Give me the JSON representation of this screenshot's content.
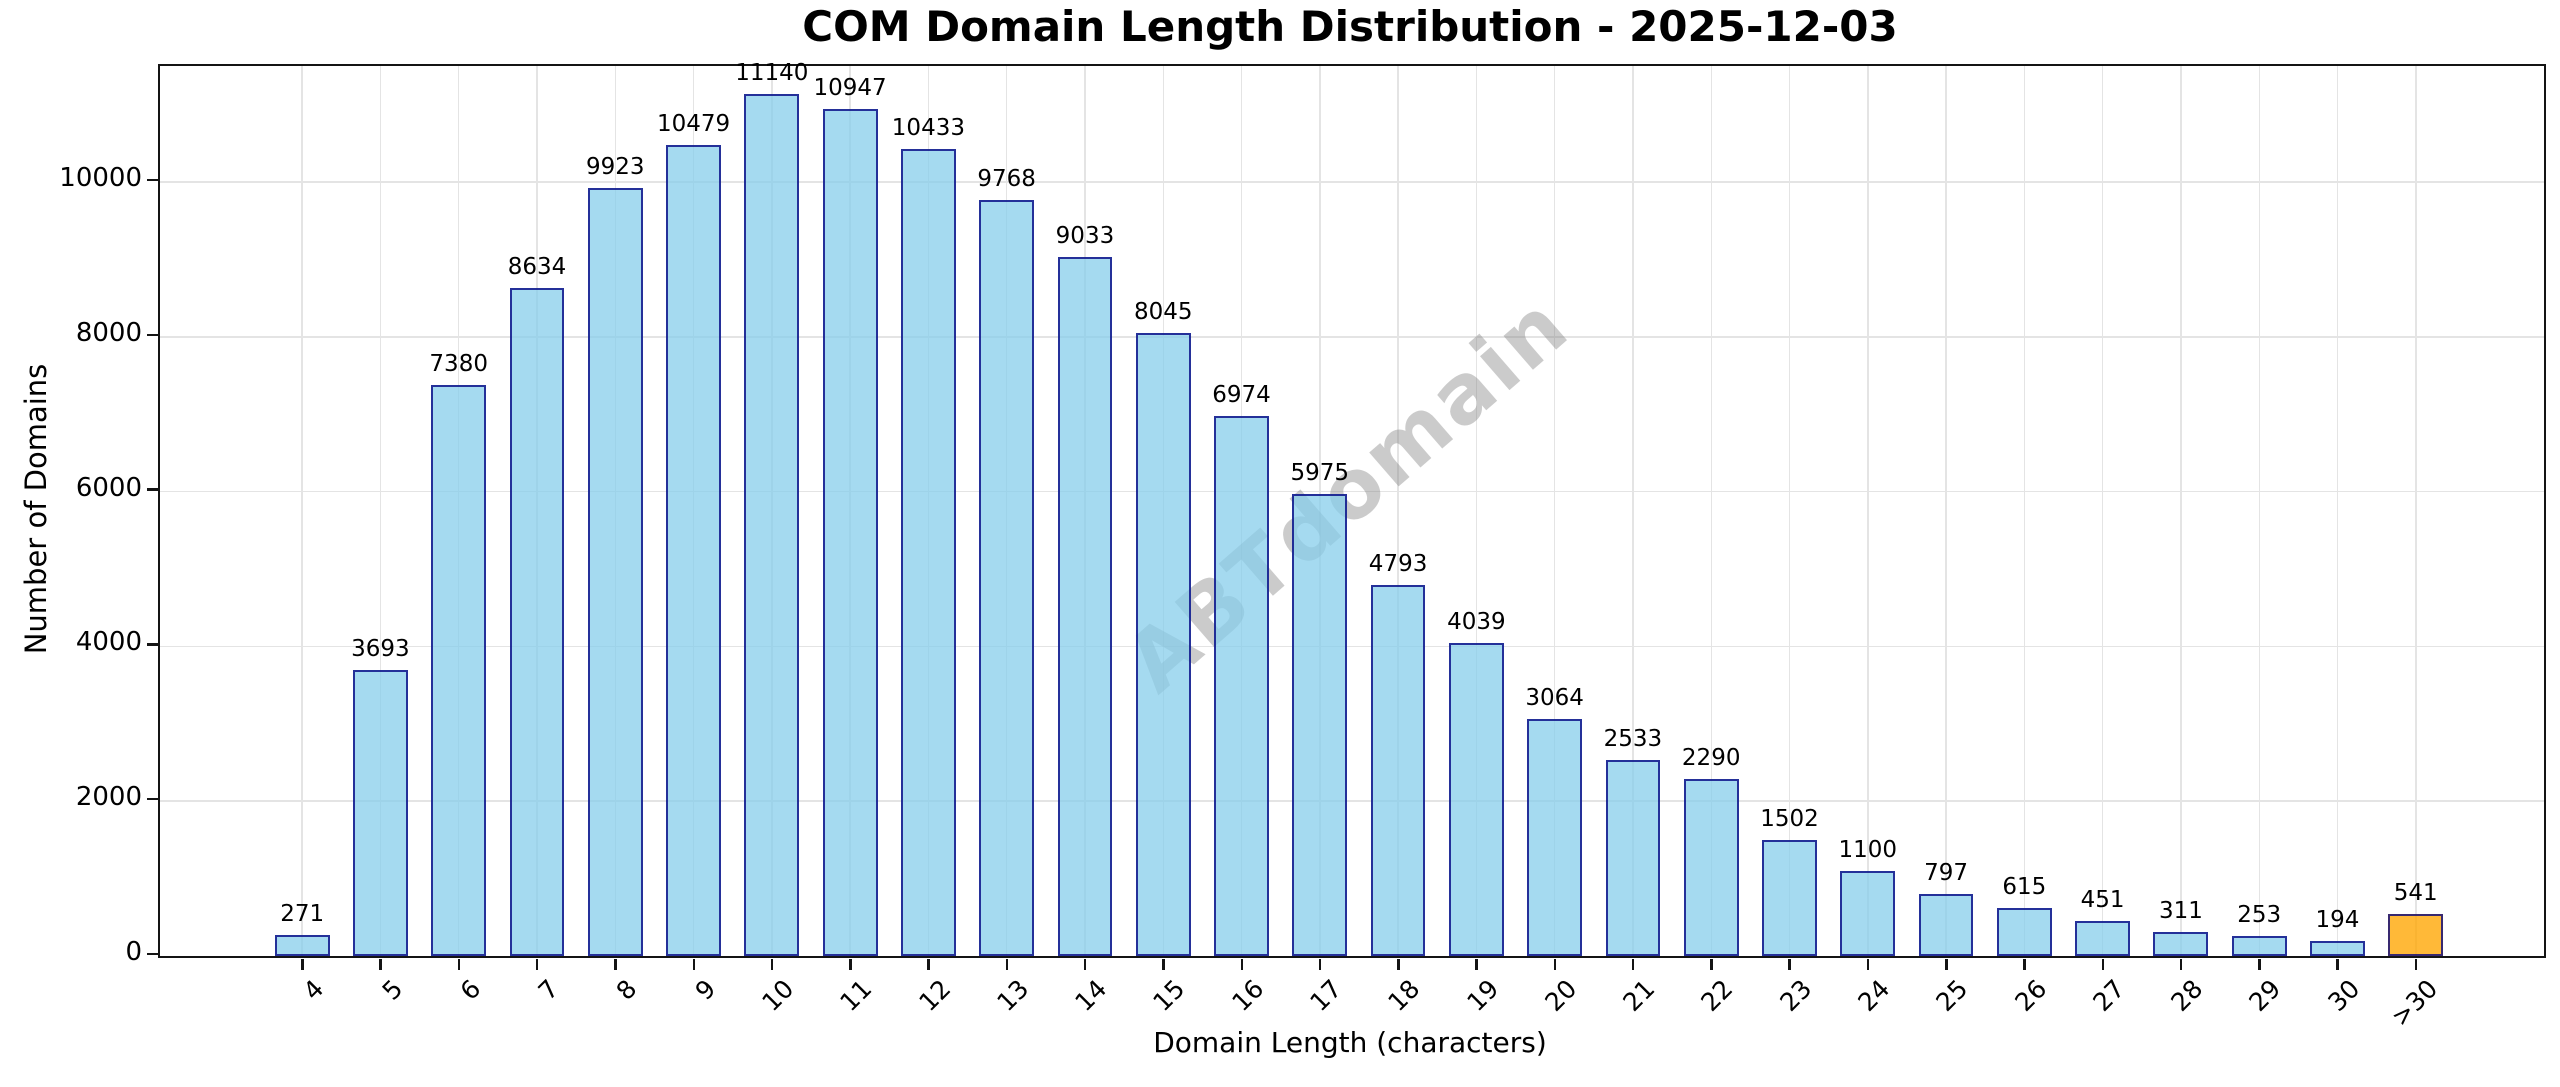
{
  "chart_data": {
    "type": "bar",
    "title": "COM Domain Length Distribution - 2025-12-03",
    "xlabel": "Domain Length (characters)",
    "ylabel": "Number of Domains",
    "watermark": "ABTdomain",
    "categories": [
      "4",
      "5",
      "6",
      "7",
      "8",
      "9",
      "10",
      "11",
      "12",
      "13",
      "14",
      "15",
      "16",
      "17",
      "18",
      "19",
      "20",
      "21",
      "22",
      "23",
      "24",
      "25",
      "26",
      "27",
      "28",
      "29",
      "30",
      ">30"
    ],
    "values": [
      271,
      3693,
      7380,
      8634,
      9923,
      10479,
      11140,
      10947,
      10433,
      9768,
      9033,
      8045,
      6974,
      5975,
      4793,
      4039,
      3064,
      2533,
      2290,
      1502,
      1100,
      797,
      615,
      451,
      311,
      253,
      194,
      541
    ],
    "yticks": [
      0,
      2000,
      4000,
      6000,
      8000,
      10000
    ],
    "ylim": [
      0,
      11500
    ],
    "grid": true,
    "legend": null,
    "colors": {
      "bar_fill": "rgba(135,206,235,0.75)",
      "bar_edge": "rgba(0,0,128,0.78)",
      "last_bar_fill": "rgba(255,165,0,0.78)",
      "grid": "#e4e4e4",
      "axis": "#141414",
      "watermark_gray": "#828282"
    }
  }
}
